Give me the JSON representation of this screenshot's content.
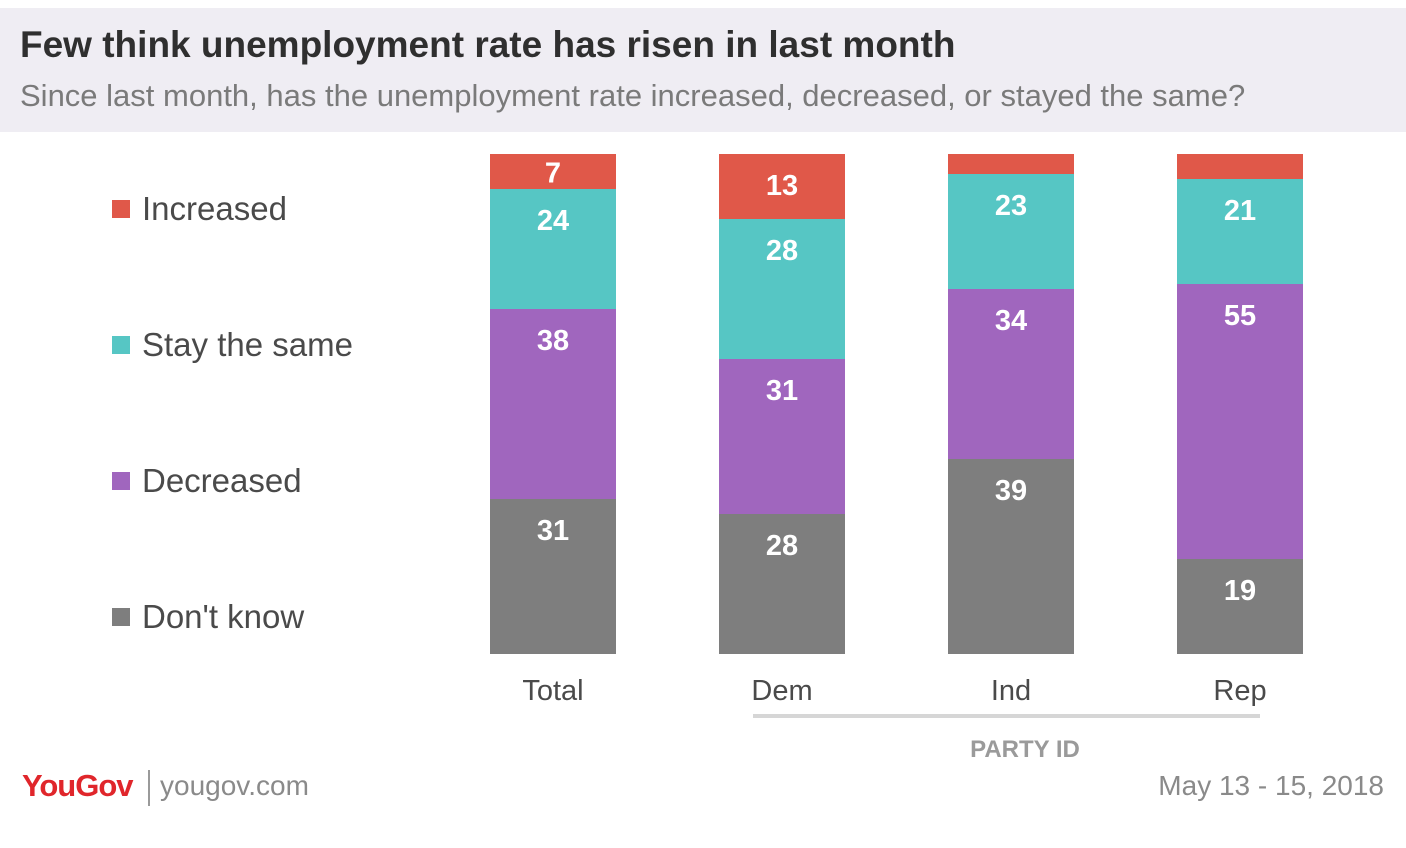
{
  "header": {
    "title": "Few think unemployment rate has risen in last month",
    "subtitle": "Since last month, has the unemployment rate increased, decreased, or stayed the same?"
  },
  "legend": [
    {
      "label": "Increased",
      "color": "#e05849"
    },
    {
      "label": "Stay the same",
      "color": "#56c6c4"
    },
    {
      "label": "Decreased",
      "color": "#a066be"
    },
    {
      "label": "Don't know",
      "color": "#7e7e7e"
    }
  ],
  "chart_data": {
    "type": "bar",
    "stacked": true,
    "categories": [
      "Total",
      "Dem",
      "Ind",
      "Rep"
    ],
    "series": [
      {
        "name": "Increased",
        "values": [
          7,
          13,
          4,
          5
        ],
        "labels": [
          "7",
          "13",
          "",
          ""
        ]
      },
      {
        "name": "Stay the same",
        "values": [
          24,
          28,
          23,
          21
        ],
        "labels": [
          "24",
          "28",
          "23",
          "21"
        ]
      },
      {
        "name": "Decreased",
        "values": [
          38,
          31,
          34,
          55
        ],
        "labels": [
          "38",
          "31",
          "34",
          "55"
        ]
      },
      {
        "name": "Don't know",
        "values": [
          31,
          28,
          39,
          19
        ],
        "labels": [
          "31",
          "28",
          "39",
          "19"
        ]
      }
    ],
    "group_label": "PARTY ID"
  },
  "footer": {
    "logo": "YouGov",
    "url": "yougov.com",
    "date": "May 13 - 15, 2018"
  }
}
